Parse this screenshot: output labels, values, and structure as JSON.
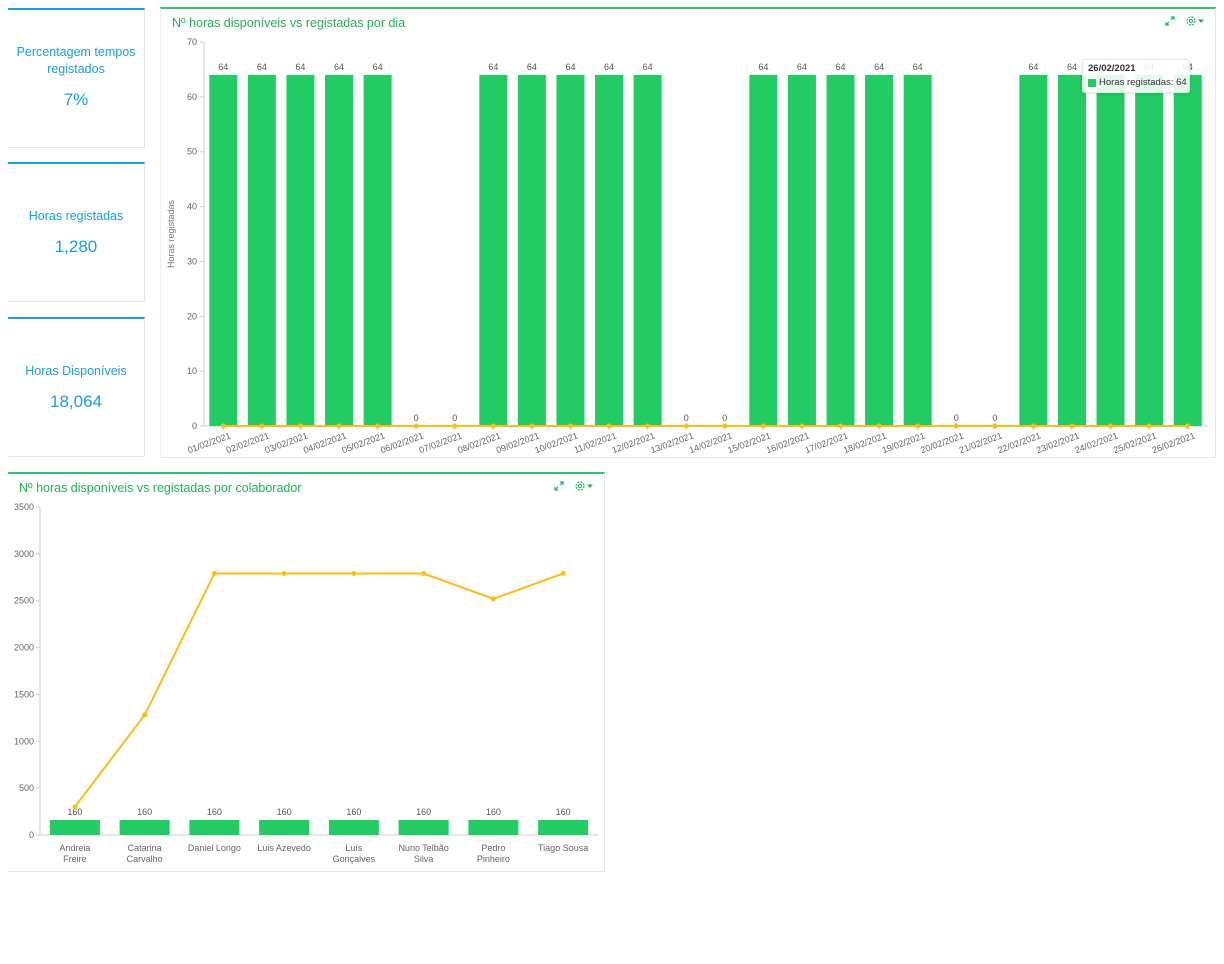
{
  "kpis": [
    {
      "title": "Percentagem tempos registados",
      "value": "7%"
    },
    {
      "title": "Horas registadas",
      "value": "1,280"
    },
    {
      "title": "Horas Disponíveis",
      "value": "18,064"
    }
  ],
  "colors": {
    "accent": "#1a9ee3",
    "bar": "#22cb64",
    "line": "#fbbd1a",
    "title_green": "#22b455"
  },
  "icons": [
    "expand-icon",
    "gear-icon",
    "caret-down-icon"
  ],
  "daily_chart": {
    "title": "Nº horas disponíveis vs registadas por dia",
    "tooltip": {
      "date": "26/02/2021",
      "text": "Horas registadas: 64"
    }
  },
  "collab_chart": {
    "title": "Nº horas disponíveis vs registadas por colaborador"
  },
  "chart_data": [
    {
      "type": "bar",
      "title": "Nº horas disponíveis vs registadas por dia",
      "ylabel": "Horas registadas",
      "ylim": [
        0,
        70
      ],
      "yticks": [
        0,
        10,
        20,
        30,
        40,
        50,
        60,
        70
      ],
      "categories": [
        "01/02/2021",
        "02/02/2021",
        "03/02/2021",
        "04/02/2021",
        "05/02/2021",
        "06/02/2021",
        "07/02/2021",
        "08/02/2021",
        "09/02/2021",
        "10/02/2021",
        "11/02/2021",
        "12/02/2021",
        "13/02/2021",
        "14/02/2021",
        "15/02/2021",
        "16/02/2021",
        "17/02/2021",
        "18/02/2021",
        "19/02/2021",
        "20/02/2021",
        "21/02/2021",
        "22/02/2021",
        "23/02/2021",
        "24/02/2021",
        "25/02/2021",
        "26/02/2021"
      ],
      "series": [
        {
          "name": "Horas registadas",
          "values": [
            64,
            64,
            64,
            64,
            64,
            0,
            0,
            64,
            64,
            64,
            64,
            64,
            0,
            0,
            64,
            64,
            64,
            64,
            64,
            0,
            0,
            64,
            64,
            64,
            64,
            64
          ]
        },
        {
          "values": [
            0,
            0,
            0,
            0,
            0,
            0,
            0,
            0,
            0,
            0,
            0,
            0,
            0,
            0,
            0,
            0,
            0,
            0,
            0,
            0,
            0,
            0,
            0,
            0,
            0,
            0
          ]
        }
      ],
      "grid": false
    },
    {
      "type": "bar",
      "title": "Nº horas disponíveis vs registadas por colaborador",
      "ylim": [
        0,
        3500
      ],
      "yticks": [
        0,
        500,
        1000,
        1500,
        2000,
        2500,
        3000,
        3500
      ],
      "categories": [
        [
          "Andreia",
          "Freire"
        ],
        [
          "Catarina",
          "Carvalho"
        ],
        [
          "Daniel Longo"
        ],
        [
          "Luis Azevedo"
        ],
        [
          "Luís",
          "Gonçalves"
        ],
        [
          "Nuno Telbão",
          "Silva"
        ],
        [
          "Pedro",
          "Pinheiro"
        ],
        [
          "Tiago Sousa"
        ]
      ],
      "series": [
        {
          "values": [
            160,
            160,
            160,
            160,
            160,
            160,
            160,
            160
          ]
        },
        {
          "values": [
            300,
            1280,
            2790,
            2790,
            2790,
            2790,
            2520,
            2790
          ]
        }
      ],
      "grid": false
    }
  ]
}
